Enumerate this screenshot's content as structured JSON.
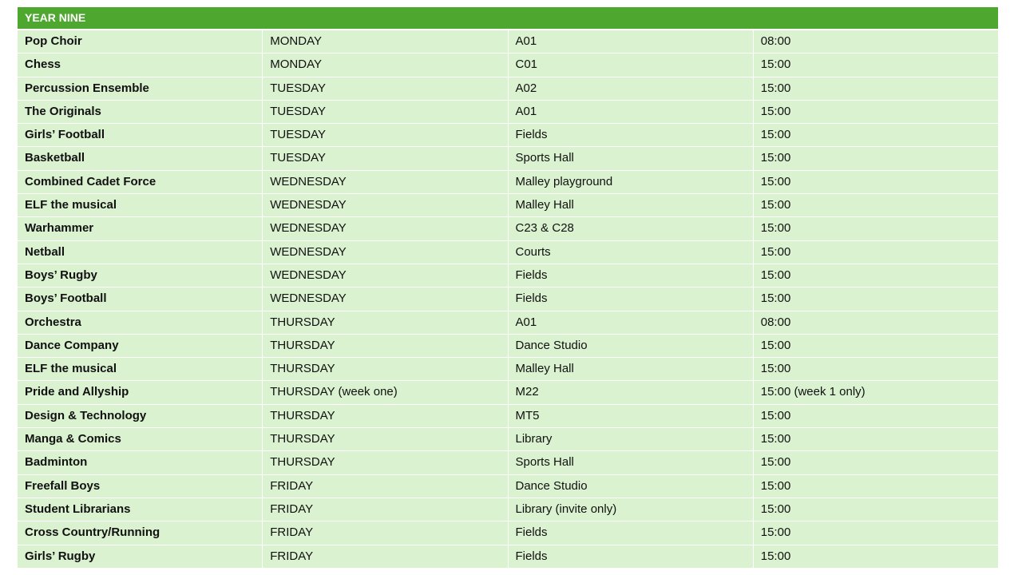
{
  "title": "YEAR NINE",
  "colors": {
    "header": "#4ea72e",
    "row": "#daf2d0"
  },
  "rows": [
    [
      "Pop Choir",
      "MONDAY",
      "A01",
      "08:00"
    ],
    [
      "Chess",
      "MONDAY",
      "C01",
      "15:00"
    ],
    [
      "Percussion Ensemble",
      "TUESDAY",
      "A02",
      "15:00"
    ],
    [
      "The Originals",
      "TUESDAY",
      "A01",
      "15:00"
    ],
    [
      "Girls’ Football",
      "TUESDAY",
      "Fields",
      "15:00"
    ],
    [
      "Basketball",
      "TUESDAY",
      "Sports Hall",
      "15:00"
    ],
    [
      "Combined Cadet Force",
      "WEDNESDAY",
      "Malley playground",
      "15:00"
    ],
    [
      "ELF the musical",
      "WEDNESDAY",
      "Malley Hall",
      "15:00"
    ],
    [
      "Warhammer",
      "WEDNESDAY",
      "C23 & C28",
      "15:00"
    ],
    [
      "Netball",
      "WEDNESDAY",
      "Courts",
      "15:00"
    ],
    [
      "Boys’ Rugby",
      "WEDNESDAY",
      "Fields",
      "15:00"
    ],
    [
      "Boys’ Football",
      "WEDNESDAY",
      "Fields",
      "15:00"
    ],
    [
      "Orchestra",
      "THURSDAY",
      "A01",
      "08:00"
    ],
    [
      "Dance Company",
      "THURSDAY",
      "Dance Studio",
      "15:00"
    ],
    [
      "ELF the musical",
      "THURSDAY",
      "Malley Hall",
      "15:00"
    ],
    [
      "Pride and Allyship",
      "THURSDAY (week one)",
      "M22",
      "15:00 (week 1 only)"
    ],
    [
      "Design & Technology",
      "THURSDAY",
      "MT5",
      "15:00"
    ],
    [
      "Manga & Comics",
      "THURSDAY",
      "Library",
      "15:00"
    ],
    [
      "Badminton",
      "THURSDAY",
      "Sports Hall",
      "15:00"
    ],
    [
      "Freefall Boys",
      "FRIDAY",
      "Dance Studio",
      "15:00"
    ],
    [
      "Student Librarians",
      "FRIDAY",
      "Library (invite only)",
      "15:00"
    ],
    [
      "Cross Country/Running",
      "FRIDAY",
      "Fields",
      "15:00"
    ],
    [
      "Girls’ Rugby",
      "FRIDAY",
      "Fields",
      "15:00"
    ]
  ]
}
